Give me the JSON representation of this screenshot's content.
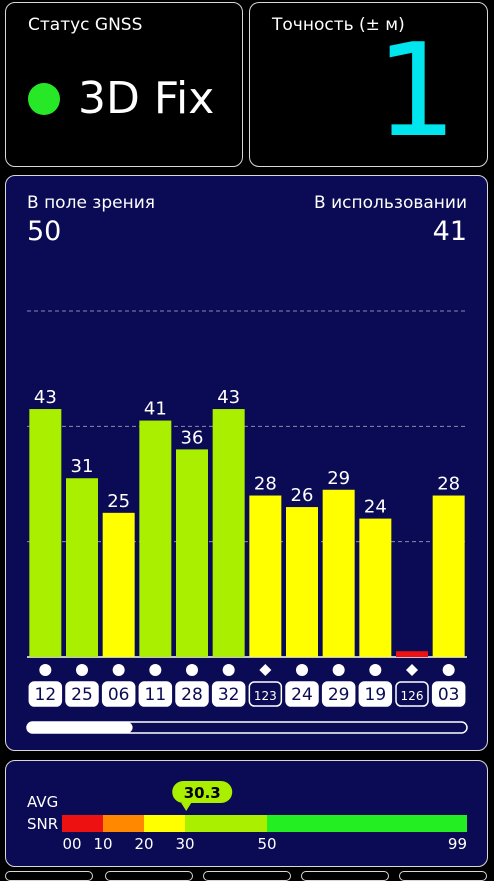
{
  "status": {
    "title": "Статус GNSS",
    "fix_label": "3D Fix",
    "fix_color": "#27e827"
  },
  "accuracy": {
    "title": "Точность (± м)",
    "value": "1"
  },
  "satellites": {
    "in_view_label": "В поле зрения",
    "in_view_count": "50",
    "in_use_label": "В использовании",
    "in_use_count": "41",
    "scrollbar_position": 0.24
  },
  "chart_data": {
    "type": "bar",
    "categories": [
      "12",
      "25",
      "06",
      "11",
      "28",
      "32",
      "123",
      "24",
      "29",
      "19",
      "126",
      "03"
    ],
    "values": [
      43,
      31,
      25,
      41,
      36,
      43,
      28,
      26,
      29,
      24,
      1,
      28
    ],
    "value_labels": [
      "43",
      "31",
      "25",
      "41",
      "36",
      "43",
      "28",
      "26",
      "29",
      "24",
      "",
      "28"
    ],
    "markers": [
      "circle",
      "circle",
      "circle",
      "circle",
      "circle",
      "circle",
      "diamond",
      "circle",
      "circle",
      "circle",
      "diamond",
      "circle"
    ],
    "label_style": [
      "fill",
      "fill",
      "fill",
      "fill",
      "fill",
      "fill",
      "outline",
      "fill",
      "fill",
      "fill",
      "outline",
      "fill"
    ],
    "colors": [
      "#aaee00",
      "#aaee00",
      "#ffff00",
      "#aaee00",
      "#aaee00",
      "#aaee00",
      "#ffff00",
      "#ffff00",
      "#ffff00",
      "#ffff00",
      "#ee1111",
      "#ffff00"
    ],
    "ylim": [
      0,
      60
    ],
    "gridlines": [
      20,
      40,
      60
    ],
    "grid": true
  },
  "snr": {
    "label_line1": "AVG",
    "label_line2": "SNR",
    "average": "30.3",
    "average_value": 30.3,
    "scale_labels": [
      "00",
      "10",
      "20",
      "30",
      "50",
      "99"
    ],
    "scale_values": [
      0,
      10,
      20,
      30,
      50,
      99
    ],
    "band_colors": [
      "#ee1111",
      "#ff8800",
      "#ffff00",
      "#aaee00",
      "#22ee22"
    ]
  }
}
